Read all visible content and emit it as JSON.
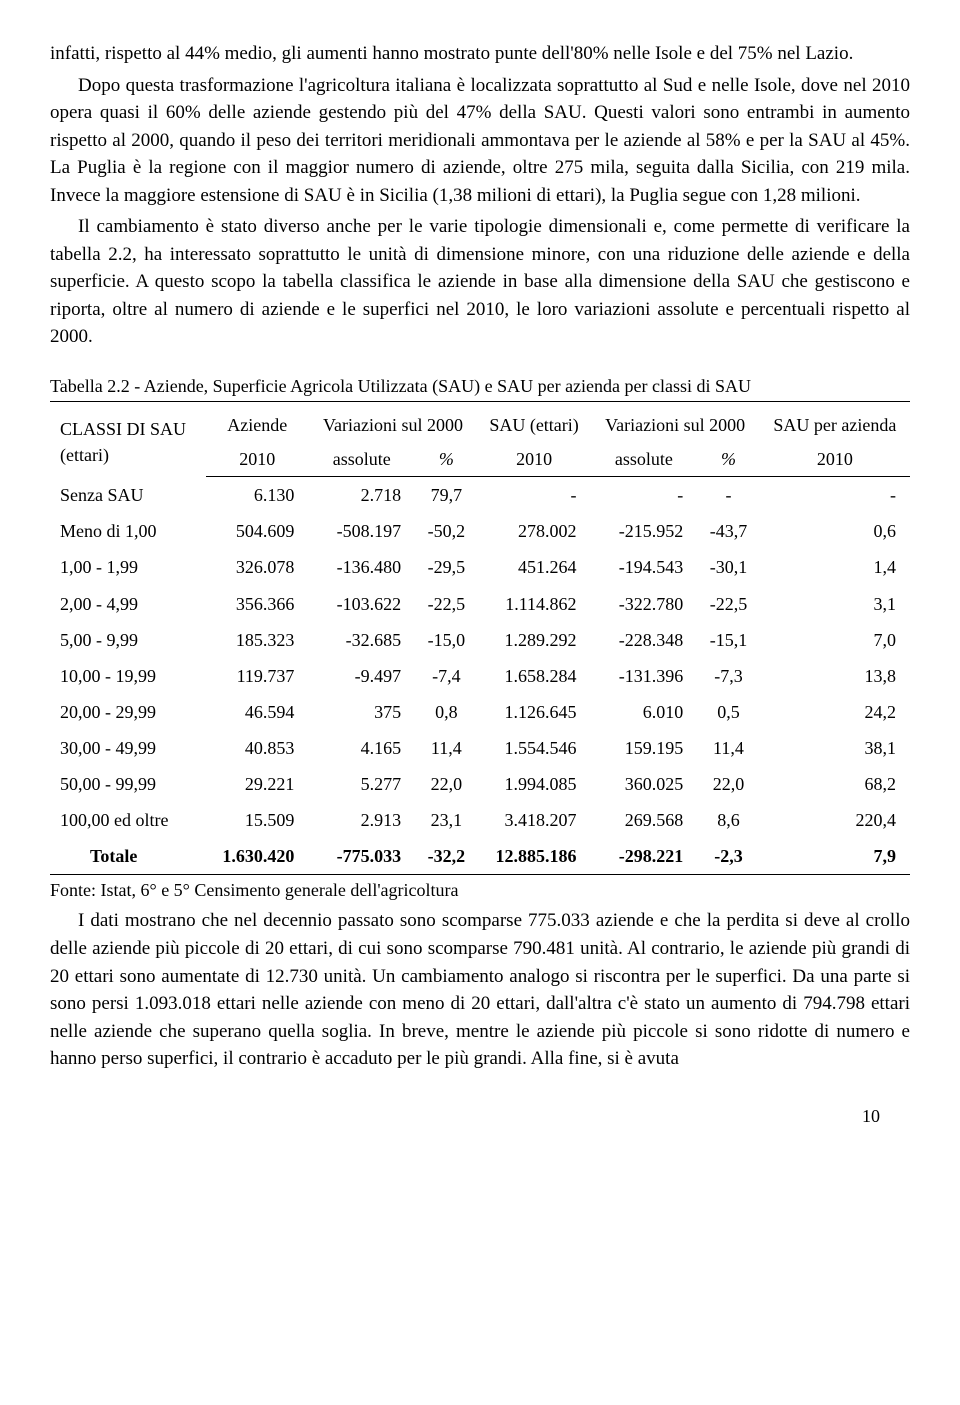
{
  "para1": "infatti, rispetto al 44% medio, gli aumenti hanno mostrato punte dell'80% nelle Isole e del 75% nel Lazio.",
  "para2": "Dopo questa trasformazione l'agricoltura italiana è localizzata soprattutto al Sud e nelle Isole, dove nel 2010 opera quasi il 60% delle aziende gestendo più del 47% della SAU. Questi valori sono entrambi in aumento rispetto al 2000, quando il peso dei territori meridionali ammontava per le aziende al 58% e per la SAU al 45%. La Puglia è la regione con il maggior numero di aziende, oltre 275 mila, seguita dalla Sicilia, con 219 mila. Invece la maggiore estensione di SAU è in Sicilia (1,38 milioni di ettari), la Puglia segue con 1,28 milioni.",
  "para3": "Il cambiamento è stato diverso anche per le varie tipologie dimensionali e, come permette di verificare la tabella 2.2, ha interessato soprattutto le unità di dimensione minore, con una riduzione delle aziende e della superficie. A questo scopo la tabella classifica le aziende in base alla dimensione della SAU che gestiscono e riporta, oltre al numero di aziende e le superfici nel 2010, le loro variazioni assolute e percentuali rispetto al 2000.",
  "caption": "Tabella 2.2 - Aziende, Superficie Agricola Utilizzata (SAU) e SAU per azienda per classi di SAU",
  "headers": {
    "c1": "CLASSI DI SAU (ettari)",
    "c2": "Aziende",
    "c3": "Variazioni sul 2000",
    "c4": "SAU (ettari)",
    "c5": "Variazioni sul 2000",
    "c6": "SAU per azienda",
    "r2_year": "2010",
    "r2_abs": "assolute",
    "r2_pct": "%"
  },
  "rows": [
    {
      "class": "Senza SAU",
      "az": "6.130",
      "va": "2.718",
      "vp": "79,7",
      "sau": "-",
      "sva": "-",
      "svp": "-",
      "spa": "-"
    },
    {
      "class": "Meno di 1,00",
      "az": "504.609",
      "va": "-508.197",
      "vp": "-50,2",
      "sau": "278.002",
      "sva": "-215.952",
      "svp": "-43,7",
      "spa": "0,6"
    },
    {
      "class": "1,00 - 1,99",
      "az": "326.078",
      "va": "-136.480",
      "vp": "-29,5",
      "sau": "451.264",
      "sva": "-194.543",
      "svp": "-30,1",
      "spa": "1,4"
    },
    {
      "class": "2,00 - 4,99",
      "az": "356.366",
      "va": "-103.622",
      "vp": "-22,5",
      "sau": "1.114.862",
      "sva": "-322.780",
      "svp": "-22,5",
      "spa": "3,1"
    },
    {
      "class": "5,00 - 9,99",
      "az": "185.323",
      "va": "-32.685",
      "vp": "-15,0",
      "sau": "1.289.292",
      "sva": "-228.348",
      "svp": "-15,1",
      "spa": "7,0"
    },
    {
      "class": "10,00 - 19,99",
      "az": "119.737",
      "va": "-9.497",
      "vp": "-7,4",
      "sau": "1.658.284",
      "sva": "-131.396",
      "svp": "-7,3",
      "spa": "13,8"
    },
    {
      "class": "20,00 - 29,99",
      "az": "46.594",
      "va": "375",
      "vp": "0,8",
      "sau": "1.126.645",
      "sva": "6.010",
      "svp": "0,5",
      "spa": "24,2"
    },
    {
      "class": "30,00 - 49,99",
      "az": "40.853",
      "va": "4.165",
      "vp": "11,4",
      "sau": "1.554.546",
      "sva": "159.195",
      "svp": "11,4",
      "spa": "38,1"
    },
    {
      "class": "50,00 - 99,99",
      "az": "29.221",
      "va": "5.277",
      "vp": "22,0",
      "sau": "1.994.085",
      "sva": "360.025",
      "svp": "22,0",
      "spa": "68,2"
    },
    {
      "class": "100,00 ed oltre",
      "az": "15.509",
      "va": "2.913",
      "vp": "23,1",
      "sau": "3.418.207",
      "sva": "269.568",
      "svp": "8,6",
      "spa": "220,4"
    }
  ],
  "total": {
    "class": "Totale",
    "az": "1.630.420",
    "va": "-775.033",
    "vp": "-32,2",
    "sau": "12.885.186",
    "sva": "-298.221",
    "svp": "-2,3",
    "spa": "7,9"
  },
  "source": "Fonte: Istat, 6° e 5° Censimento generale dell'agricoltura",
  "para4": "I dati mostrano che nel decennio passato sono scomparse 775.033 aziende e che la perdita si deve al crollo delle aziende più piccole di 20 ettari, di cui sono scomparse 790.481 unità. Al contrario, le aziende più grandi di 20 ettari sono aumentate di 12.730 unità. Un cambiamento analogo si riscontra per le superfici. Da una parte si sono persi 1.093.018 ettari nelle aziende con meno di 20 ettari, dall'altra c'è stato un aumento di 794.798 ettari nelle aziende che superano quella soglia. In breve, mentre le aziende più piccole si sono ridotte di numero e hanno perso superfici, il contrario è accaduto per le più grandi. Alla fine, si è avuta",
  "page": "10"
}
